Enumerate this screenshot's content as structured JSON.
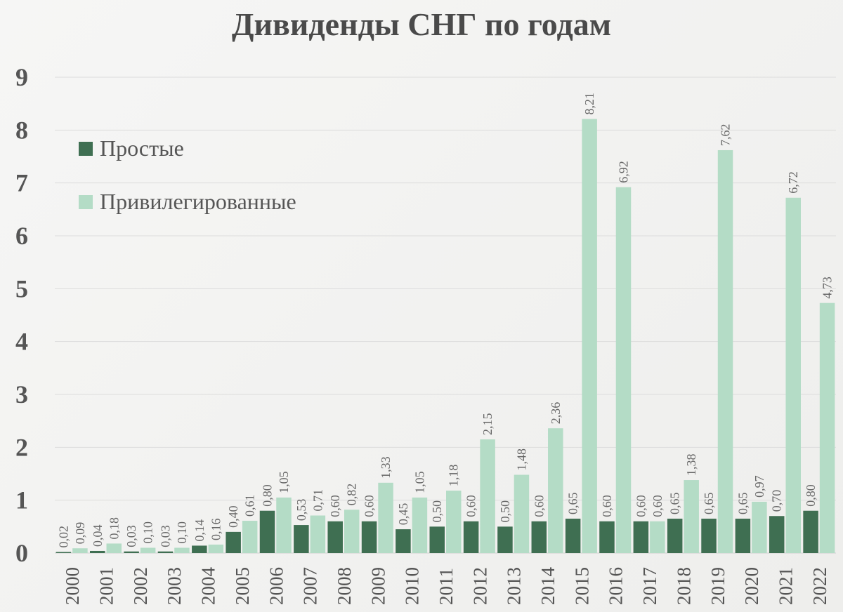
{
  "chart_data": {
    "type": "bar",
    "title": "Дивиденды СНГ по годам",
    "categories": [
      "2000",
      "2001",
      "2002",
      "2003",
      "2004",
      "2005",
      "2006",
      "2007",
      "2008",
      "2009",
      "2010",
      "2011",
      "2012",
      "2013",
      "2014",
      "2015",
      "2016",
      "2017",
      "2018",
      "2019",
      "2020",
      "2021",
      "2022"
    ],
    "series": [
      {
        "name": "Простые",
        "color": "#3f6f52",
        "values": [
          0.02,
          0.04,
          0.03,
          0.03,
          0.14,
          0.4,
          0.8,
          0.53,
          0.6,
          0.6,
          0.45,
          0.5,
          0.6,
          0.5,
          0.6,
          0.65,
          0.6,
          0.6,
          0.65,
          0.65,
          0.65,
          0.7,
          0.8
        ],
        "labels": [
          "0,02",
          "0,04",
          "0,03",
          "0,03",
          "0,14",
          "0,40",
          "0,80",
          "0,53",
          "0,60",
          "0,60",
          "0,45",
          "0,50",
          "0,60",
          "0,50",
          "0,60",
          "0,65",
          "0,60",
          "0,60",
          "0,65",
          "0,65",
          "0,65",
          "0,70",
          "0,80"
        ]
      },
      {
        "name": "Привилегированные",
        "color": "#b4dcc6",
        "values": [
          0.09,
          0.18,
          0.1,
          0.1,
          0.16,
          0.61,
          1.05,
          0.71,
          0.82,
          1.33,
          1.05,
          1.18,
          2.15,
          1.48,
          2.36,
          8.21,
          6.92,
          0.6,
          1.38,
          7.62,
          0.97,
          6.72,
          4.73
        ],
        "labels": [
          "0,09",
          "0,18",
          "0,10",
          "0,10",
          "0,16",
          "0,61",
          "1,05",
          "0,71",
          "0,82",
          "1,33",
          "1,05",
          "1,18",
          "2,15",
          "1,48",
          "2,36",
          "8,21",
          "6,92",
          "0,60",
          "1,38",
          "7,62",
          "0,97",
          "6,72",
          "4,73"
        ]
      }
    ],
    "y_ticks": [
      "0",
      "1",
      "2",
      "3",
      "4",
      "5",
      "6",
      "7",
      "8",
      "9"
    ],
    "ylim": [
      0,
      9
    ],
    "xlabel": "",
    "ylabel": "",
    "grid": true,
    "legend": "top-left"
  }
}
